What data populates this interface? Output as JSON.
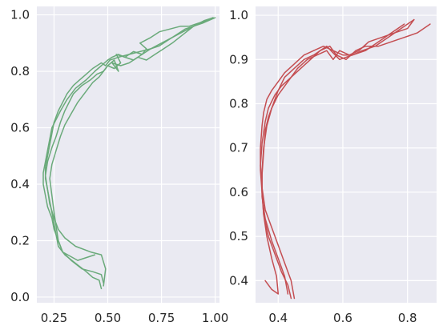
{
  "chart_data": [
    {
      "type": "line",
      "color": "#6aaa7a",
      "xlim": [
        0.17,
        1.02
      ],
      "ylim": [
        1.03,
        -0.02
      ],
      "y_inverted": true,
      "grid": true,
      "xticks": [
        0.25,
        0.5,
        0.75,
        1.0
      ],
      "xtick_labels": [
        "0.25",
        "0.50",
        "0.75",
        "1.00"
      ],
      "yticks": [
        0.0,
        0.2,
        0.4,
        0.6,
        0.8,
        1.0
      ],
      "ytick_labels": [
        "0.0",
        "0.2",
        "0.4",
        "0.6",
        "0.8",
        "1.0"
      ],
      "series": [
        {
          "x": [
            0.47,
            0.46,
            0.43,
            0.4,
            0.35,
            0.3,
            0.27,
            0.26,
            0.25,
            0.24,
            0.23,
            0.22,
            0.21,
            0.21,
            0.22,
            0.23,
            0.24,
            0.25,
            0.27,
            0.29,
            0.31,
            0.34,
            0.37,
            0.4,
            0.43,
            0.45,
            0.47,
            0.49,
            0.51,
            0.55,
            0.6,
            0.65,
            0.7,
            0.75,
            0.8,
            0.85,
            0.9,
            0.93,
            0.96,
            0.99
          ],
          "y": [
            0.03,
            0.06,
            0.07,
            0.09,
            0.12,
            0.15,
            0.18,
            0.22,
            0.26,
            0.3,
            0.34,
            0.38,
            0.42,
            0.46,
            0.5,
            0.54,
            0.58,
            0.62,
            0.66,
            0.69,
            0.72,
            0.75,
            0.77,
            0.79,
            0.81,
            0.82,
            0.83,
            0.82,
            0.84,
            0.85,
            0.86,
            0.87,
            0.88,
            0.9,
            0.92,
            0.94,
            0.96,
            0.97,
            0.98,
            0.99
          ]
        },
        {
          "x": [
            0.48,
            0.47,
            0.43,
            0.38,
            0.33,
            0.29,
            0.27,
            0.25,
            0.24,
            0.22,
            0.21,
            0.2,
            0.2,
            0.21,
            0.22,
            0.23,
            0.24,
            0.26,
            0.28,
            0.31,
            0.35,
            0.4,
            0.44,
            0.47,
            0.5,
            0.52,
            0.55,
            0.58,
            0.62,
            0.66,
            0.7,
            0.74,
            0.78,
            0.82,
            0.86,
            0.9,
            0.94,
            0.97,
            1.0
          ],
          "y": [
            0.05,
            0.08,
            0.09,
            0.1,
            0.13,
            0.16,
            0.2,
            0.24,
            0.28,
            0.32,
            0.36,
            0.4,
            0.44,
            0.48,
            0.52,
            0.56,
            0.6,
            0.63,
            0.66,
            0.7,
            0.74,
            0.77,
            0.8,
            0.82,
            0.84,
            0.85,
            0.86,
            0.85,
            0.87,
            0.86,
            0.88,
            0.89,
            0.91,
            0.93,
            0.95,
            0.96,
            0.97,
            0.98,
            0.99
          ]
        },
        {
          "x": [
            0.44,
            0.36,
            0.29,
            0.27,
            0.26,
            0.25,
            0.24,
            0.23,
            0.24,
            0.26,
            0.28,
            0.3,
            0.33,
            0.36,
            0.4,
            0.43,
            0.46,
            0.48,
            0.5,
            0.53,
            0.56,
            0.54,
            0.58,
            0.62,
            0.66,
            0.68,
            0.65,
            0.7,
            0.74,
            0.79,
            0.84,
            0.88,
            0.92,
            0.96,
            0.99
          ],
          "y": [
            0.15,
            0.13,
            0.16,
            0.2,
            0.25,
            0.3,
            0.36,
            0.42,
            0.47,
            0.52,
            0.57,
            0.61,
            0.65,
            0.69,
            0.73,
            0.76,
            0.78,
            0.8,
            0.82,
            0.81,
            0.83,
            0.86,
            0.85,
            0.84,
            0.86,
            0.88,
            0.9,
            0.92,
            0.94,
            0.95,
            0.96,
            0.96,
            0.97,
            0.98,
            0.99
          ]
        },
        {
          "x": [
            0.48,
            0.49,
            0.47,
            0.42,
            0.35,
            0.3,
            0.27,
            0.25,
            0.23,
            0.22,
            0.21,
            0.22,
            0.24,
            0.26,
            0.28,
            0.3,
            0.32,
            0.34,
            0.38,
            0.42,
            0.45,
            0.48,
            0.5,
            0.53,
            0.55,
            0.52,
            0.56,
            0.6,
            0.64,
            0.68,
            0.72,
            0.76,
            0.8,
            0.85,
            0.9,
            0.95,
            0.99
          ],
          "y": [
            0.04,
            0.1,
            0.15,
            0.16,
            0.18,
            0.21,
            0.24,
            0.28,
            0.33,
            0.38,
            0.43,
            0.48,
            0.53,
            0.57,
            0.62,
            0.66,
            0.69,
            0.72,
            0.75,
            0.77,
            0.79,
            0.8,
            0.82,
            0.84,
            0.8,
            0.83,
            0.82,
            0.83,
            0.85,
            0.84,
            0.86,
            0.88,
            0.9,
            0.93,
            0.96,
            0.98,
            0.99
          ]
        }
      ]
    },
    {
      "type": "line",
      "color": "#c44e52",
      "xlim": [
        0.33,
        0.89
      ],
      "ylim": [
        1.02,
        0.35
      ],
      "y_inverted": true,
      "grid": true,
      "xticks": [
        0.4,
        0.6,
        0.8
      ],
      "xtick_labels": [
        "0.4",
        "0.6",
        "0.8"
      ],
      "yticks": [
        0.4,
        0.5,
        0.6,
        0.7,
        0.8,
        0.9,
        1.0
      ],
      "ytick_labels": [
        "0.4",
        "0.5",
        "0.6",
        "0.7",
        "0.8",
        "0.9",
        "1.0"
      ],
      "series": [
        {
          "x": [
            0.44,
            0.43,
            0.41,
            0.39,
            0.37,
            0.355,
            0.35,
            0.345,
            0.345,
            0.35,
            0.355,
            0.365,
            0.38,
            0.4,
            0.42,
            0.45,
            0.48,
            0.51,
            0.54,
            0.57,
            0.6,
            0.63,
            0.66,
            0.7,
            0.74,
            0.78,
            0.82
          ],
          "y": [
            0.36,
            0.39,
            0.42,
            0.46,
            0.5,
            0.55,
            0.6,
            0.65,
            0.7,
            0.75,
            0.78,
            0.81,
            0.83,
            0.85,
            0.87,
            0.89,
            0.91,
            0.92,
            0.93,
            0.92,
            0.91,
            0.91,
            0.92,
            0.93,
            0.95,
            0.97,
            0.99
          ]
        },
        {
          "x": [
            0.45,
            0.44,
            0.42,
            0.4,
            0.38,
            0.36,
            0.35,
            0.345,
            0.35,
            0.36,
            0.37,
            0.39,
            0.41,
            0.44,
            0.47,
            0.5,
            0.53,
            0.56,
            0.58,
            0.61,
            0.64,
            0.67,
            0.71,
            0.75,
            0.79,
            0.83,
            0.87
          ],
          "y": [
            0.36,
            0.4,
            0.44,
            0.48,
            0.52,
            0.56,
            0.61,
            0.66,
            0.71,
            0.76,
            0.79,
            0.82,
            0.84,
            0.86,
            0.88,
            0.9,
            0.92,
            0.93,
            0.91,
            0.9,
            0.92,
            0.93,
            0.93,
            0.94,
            0.95,
            0.96,
            0.98
          ]
        },
        {
          "x": [
            0.36,
            0.38,
            0.4,
            0.395,
            0.38,
            0.365,
            0.355,
            0.35,
            0.35,
            0.355,
            0.365,
            0.38,
            0.4,
            0.43,
            0.46,
            0.49,
            0.52,
            0.55,
            0.57,
            0.59,
            0.62,
            0.65,
            0.68,
            0.72,
            0.76,
            0.8,
            0.82
          ],
          "y": [
            0.4,
            0.38,
            0.37,
            0.41,
            0.45,
            0.5,
            0.55,
            0.6,
            0.65,
            0.7,
            0.75,
            0.79,
            0.82,
            0.85,
            0.88,
            0.9,
            0.91,
            0.92,
            0.9,
            0.92,
            0.91,
            0.92,
            0.94,
            0.95,
            0.96,
            0.97,
            0.99
          ]
        },
        {
          "x": [
            0.43,
            0.42,
            0.4,
            0.38,
            0.36,
            0.35,
            0.35,
            0.355,
            0.36,
            0.37,
            0.385,
            0.4,
            0.42,
            0.45,
            0.48,
            0.51,
            0.55,
            0.59,
            0.63,
            0.67,
            0.71,
            0.75,
            0.79
          ],
          "y": [
            0.37,
            0.41,
            0.45,
            0.49,
            0.54,
            0.59,
            0.64,
            0.69,
            0.74,
            0.77,
            0.8,
            0.83,
            0.86,
            0.88,
            0.9,
            0.91,
            0.93,
            0.9,
            0.91,
            0.92,
            0.94,
            0.96,
            0.98
          ]
        }
      ]
    }
  ]
}
